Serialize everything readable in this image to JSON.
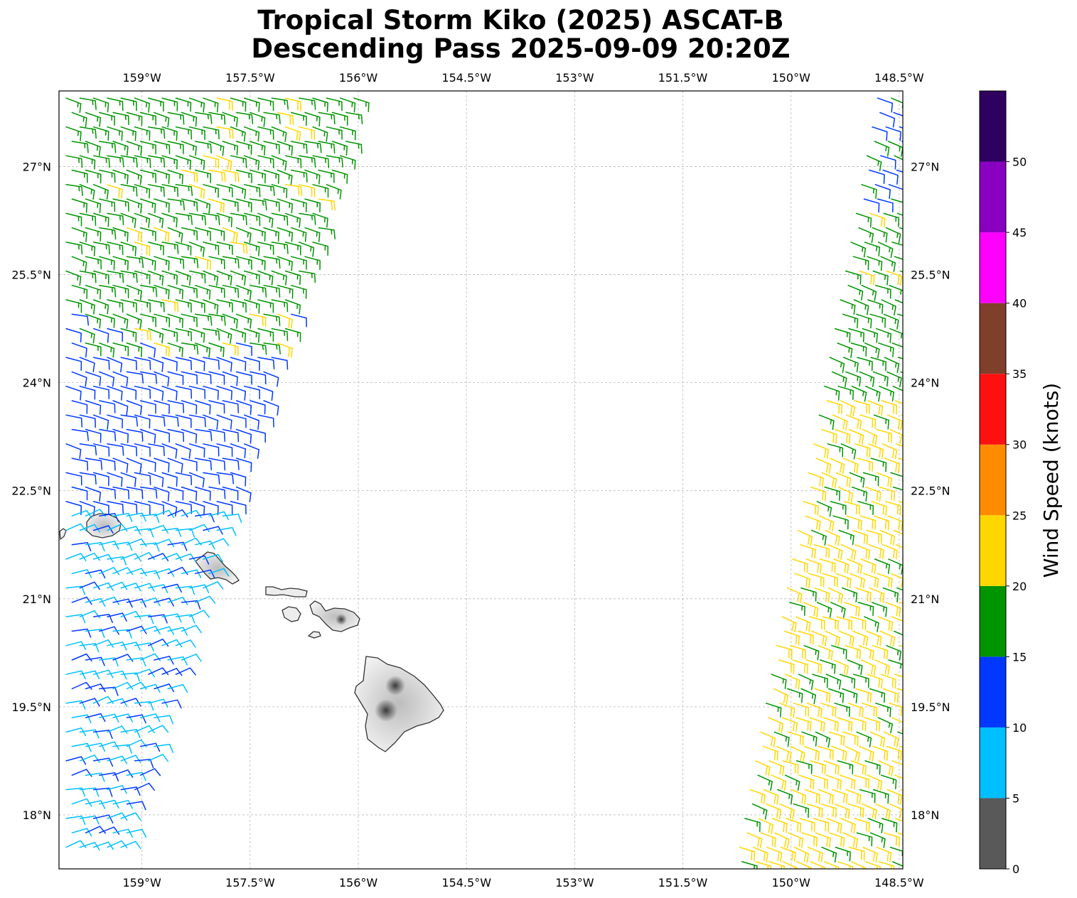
{
  "title": {
    "line1": "Tropical Storm Kiko (2025) ASCAT-B",
    "line2": "Descending Pass 2025-09-09 20:20Z"
  },
  "map": {
    "lon_range": [
      -160.15,
      -148.45
    ],
    "lat_range": [
      17.25,
      28.05
    ],
    "grid": true,
    "lon_ticks": [
      {
        "value": -159.0,
        "label": "159°W"
      },
      {
        "value": -157.5,
        "label": "157.5°W"
      },
      {
        "value": -156.0,
        "label": "156°W"
      },
      {
        "value": -154.5,
        "label": "154.5°W"
      },
      {
        "value": -153.0,
        "label": "153°W"
      },
      {
        "value": -151.5,
        "label": "151.5°W"
      },
      {
        "value": -150.0,
        "label": "150°W"
      },
      {
        "value": -148.5,
        "label": "148.5°W"
      }
    ],
    "lat_ticks": [
      {
        "value": 27.0,
        "label": "27°N"
      },
      {
        "value": 25.5,
        "label": "25.5°N"
      },
      {
        "value": 24.0,
        "label": "24°N"
      },
      {
        "value": 22.5,
        "label": "22.5°N"
      },
      {
        "value": 21.0,
        "label": "21°N"
      },
      {
        "value": 19.5,
        "label": "19.5°N"
      },
      {
        "value": 18.0,
        "label": "18°N"
      }
    ],
    "islands": [
      "Kauai",
      "Oahu",
      "Molokai",
      "Lanai",
      "Maui",
      "Kahoolawe",
      "Hawaii (Big Island)"
    ],
    "land_color": "#e8e8e8",
    "coastline_color": "#333333"
  },
  "colorbar": {
    "label": "Wind Speed (knots)",
    "bounds": [
      0,
      5,
      10,
      15,
      20,
      25,
      30,
      35,
      40,
      45,
      50,
      55
    ],
    "tick_labels": [
      "0",
      "5",
      "10",
      "15",
      "20",
      "25",
      "30",
      "35",
      "40",
      "45",
      "50"
    ],
    "colors": [
      "#595959",
      "#00bfff",
      "#0038ff",
      "#009400",
      "#ffd700",
      "#ff8c00",
      "#ff1010",
      "#7f3f2a",
      "#ff00ff",
      "#8a00c0",
      "#2e0060"
    ]
  },
  "chart_data": {
    "type": "wind-barb map",
    "swaths": [
      {
        "name": "west swath",
        "zones": [
          {
            "lat_range": [
              24.5,
              28.0
            ],
            "speed_kt": 17,
            "color_bin": "15-20",
            "note_yellow_patches_kt": 22
          },
          {
            "lat_range": [
              22.3,
              24.5
            ],
            "speed_kt": 12,
            "color_bin": "10-15"
          },
          {
            "lat_range": [
              17.5,
              22.3
            ],
            "speed_kt": 8,
            "color_bin": "5-10"
          }
        ]
      },
      {
        "name": "east swath",
        "zones": [
          {
            "lat_range": [
              23.8,
              28.0
            ],
            "speed_kt": 17,
            "color_bin": "15-20",
            "note_north_blue_kt": 12
          },
          {
            "lat_range": [
              17.3,
              23.8
            ],
            "speed_kt": 22,
            "color_bin": "20-25",
            "note_green_mixed_kt": 17
          }
        ]
      }
    ]
  }
}
